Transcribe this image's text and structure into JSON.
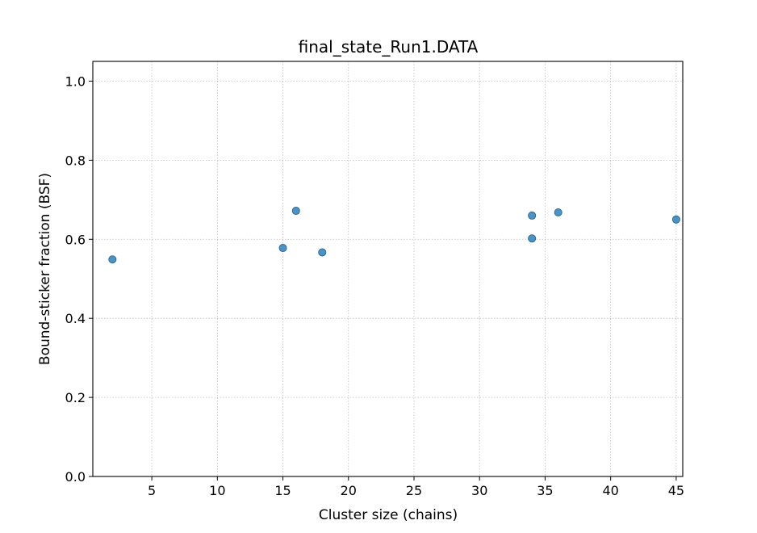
{
  "chart_data": {
    "type": "scatter",
    "title": "final_state_Run1.DATA",
    "xlabel": "Cluster size (chains)",
    "ylabel": "Bound-sticker fraction (BSF)",
    "xlim": [
      0.5,
      45.5
    ],
    "ylim": [
      0.0,
      1.05
    ],
    "xticks": [
      5,
      10,
      15,
      20,
      25,
      30,
      35,
      40,
      45
    ],
    "xtick_labels": [
      "5",
      "10",
      "15",
      "20",
      "25",
      "30",
      "35",
      "40",
      "45"
    ],
    "yticks": [
      0.0,
      0.2,
      0.4,
      0.6,
      0.8,
      1.0
    ],
    "ytick_labels": [
      "0.0",
      "0.2",
      "0.4",
      "0.6",
      "0.8",
      "1.0"
    ],
    "grid": true,
    "point_color": "#1f77b4",
    "points": [
      {
        "x": 2,
        "y": 0.549
      },
      {
        "x": 15,
        "y": 0.578
      },
      {
        "x": 16,
        "y": 0.672
      },
      {
        "x": 18,
        "y": 0.567
      },
      {
        "x": 34,
        "y": 0.66
      },
      {
        "x": 34,
        "y": 0.602
      },
      {
        "x": 36,
        "y": 0.668
      },
      {
        "x": 45,
        "y": 0.65
      }
    ]
  }
}
